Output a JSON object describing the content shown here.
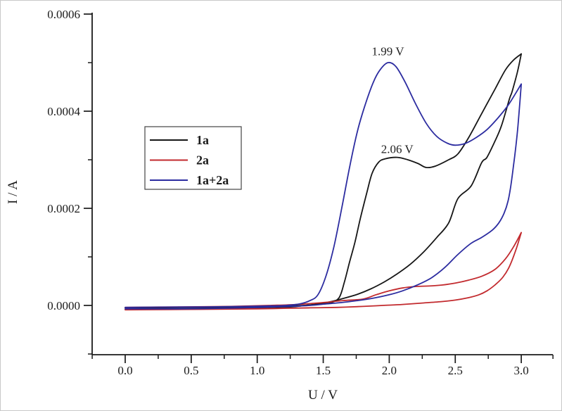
{
  "figure": {
    "background": "#ffffff",
    "axis_color": "#1a1a1a"
  },
  "axes": {
    "x_title": "U / V",
    "y_title": "I / A"
  },
  "legend": {
    "entries": [
      {
        "label": "1a",
        "color": "#161616"
      },
      {
        "label": "2a",
        "color": "#c22a2e"
      },
      {
        "label": "1a+2a",
        "color": "#2c2ca0"
      }
    ]
  },
  "chart_data": {
    "type": "line",
    "chart_kind": "cyclic-voltammogram",
    "title": "",
    "xlabel": "U / V",
    "ylabel": "I / A",
    "xlim": [
      -0.25,
      3.25
    ],
    "ylim": [
      -0.0001,
      0.0006
    ],
    "grid": false,
    "legend_position": "upper-left-inside",
    "x_ticks": {
      "values": [
        0.0,
        0.5,
        1.0,
        1.5,
        2.0,
        2.5,
        3.0
      ],
      "labels": [
        "0.0",
        "0.5",
        "1.0",
        "1.5",
        "2.0",
        "2.5",
        "3.0"
      ],
      "minor": [
        -0.25,
        0.25,
        0.75,
        1.25,
        1.75,
        2.25,
        2.75,
        3.24
      ]
    },
    "y_ticks": {
      "values": [
        0.0,
        0.0002,
        0.0004,
        0.0006
      ],
      "labels": [
        "0.0000",
        "0.0002",
        "0.0004",
        "0.0006"
      ],
      "minor": [
        -0.0001,
        0.0001,
        0.0003,
        0.0005
      ]
    },
    "annotations": [
      {
        "text": "1.99 V",
        "x": 1.99,
        "y": 0.000515,
        "series": "1a+2a"
      },
      {
        "text": "2.06 V",
        "x": 2.06,
        "y": 0.000314,
        "series": "1a"
      }
    ],
    "series": [
      {
        "name": "1a",
        "color": "#161616",
        "peak": {
          "v": 2.06,
          "i": 0.000305
        },
        "forward": [
          [
            0.0,
            -5e-06
          ],
          [
            0.3,
            -4.5e-06
          ],
          [
            0.6,
            -4e-06
          ],
          [
            0.9,
            -3e-06
          ],
          [
            1.1,
            -2e-06
          ],
          [
            1.25,
            -1e-06
          ],
          [
            1.35,
            0
          ],
          [
            1.45,
            2e-06
          ],
          [
            1.55,
            5e-06
          ],
          [
            1.62,
            1.6e-05
          ],
          [
            1.66,
            4.8e-05
          ],
          [
            1.7,
            9e-05
          ],
          [
            1.74,
            0.00013
          ],
          [
            1.78,
            0.000178
          ],
          [
            1.83,
            0.000232
          ],
          [
            1.87,
            0.000272
          ],
          [
            1.92,
            0.000295
          ],
          [
            1.97,
            0.000302
          ],
          [
            2.06,
            0.000305
          ],
          [
            2.14,
            0.0003
          ],
          [
            2.22,
            0.000292
          ],
          [
            2.28,
            0.000284
          ],
          [
            2.35,
            0.000287
          ],
          [
            2.45,
            0.0003
          ],
          [
            2.52,
            0.000312
          ],
          [
            2.6,
            0.000345
          ],
          [
            2.7,
            0.000395
          ],
          [
            2.8,
            0.000445
          ],
          [
            2.88,
            0.000485
          ],
          [
            2.94,
            0.000505
          ],
          [
            3.0,
            0.000518
          ]
        ],
        "return": [
          [
            3.0,
            0.000518
          ],
          [
            2.97,
            0.00048
          ],
          [
            2.93,
            0.00044
          ],
          [
            2.91,
            0.000425
          ],
          [
            2.85,
            0.00037
          ],
          [
            2.8,
            0.000338
          ],
          [
            2.74,
            0.000305
          ],
          [
            2.7,
            0.000294
          ],
          [
            2.62,
            0.000246
          ],
          [
            2.52,
            0.00022
          ],
          [
            2.45,
            0.00017
          ],
          [
            2.36,
            0.00014
          ],
          [
            2.26,
            0.00011
          ],
          [
            2.16,
            8.5e-05
          ],
          [
            2.06,
            6.5e-05
          ],
          [
            1.96,
            4.8e-05
          ],
          [
            1.86,
            3.4e-05
          ],
          [
            1.76,
            2.3e-05
          ],
          [
            1.66,
            1.5e-05
          ],
          [
            1.56,
            8e-06
          ],
          [
            1.46,
            3e-06
          ],
          [
            1.36,
            0
          ],
          [
            1.25,
            -3e-06
          ],
          [
            1.0,
            -5e-06
          ],
          [
            0.7,
            -7e-06
          ],
          [
            0.4,
            -8e-06
          ],
          [
            0.0,
            -8e-06
          ]
        ]
      },
      {
        "name": "2a",
        "color": "#c22a2e",
        "peak": null,
        "forward": [
          [
            0.0,
            -4e-06
          ],
          [
            0.4,
            -3e-06
          ],
          [
            0.8,
            -2e-06
          ],
          [
            1.1,
            0
          ],
          [
            1.3,
            2e-06
          ],
          [
            1.5,
            6e-06
          ],
          [
            1.65,
            1e-05
          ],
          [
            1.8,
            1.3e-05
          ],
          [
            1.9,
            2.2e-05
          ],
          [
            2.0,
            3e-05
          ],
          [
            2.1,
            3.6e-05
          ],
          [
            2.2,
            3.9e-05
          ],
          [
            2.3,
            4e-05
          ],
          [
            2.4,
            4.2e-05
          ],
          [
            2.5,
            4.6e-05
          ],
          [
            2.6,
            5.2e-05
          ],
          [
            2.7,
            6e-05
          ],
          [
            2.8,
            7.4e-05
          ],
          [
            2.88,
            9.6e-05
          ],
          [
            2.94,
            0.00012
          ],
          [
            3.0,
            0.00015
          ]
        ],
        "return": [
          [
            3.0,
            0.00015
          ],
          [
            2.96,
            0.000115
          ],
          [
            2.91,
            8e-05
          ],
          [
            2.86,
            5.8e-05
          ],
          [
            2.8,
            4.2e-05
          ],
          [
            2.74,
            3e-05
          ],
          [
            2.68,
            2.2e-05
          ],
          [
            2.6,
            1.6e-05
          ],
          [
            2.5,
            1.1e-05
          ],
          [
            2.4,
            8e-06
          ],
          [
            2.25,
            5e-06
          ],
          [
            2.1,
            2e-06
          ],
          [
            1.95,
            0
          ],
          [
            1.8,
            -2e-06
          ],
          [
            1.6,
            -4e-06
          ],
          [
            1.4,
            -5e-06
          ],
          [
            1.2,
            -6e-06
          ],
          [
            1.0,
            -7e-06
          ],
          [
            0.6,
            -8e-06
          ],
          [
            0.0,
            -9e-06
          ]
        ]
      },
      {
        "name": "1a+2a",
        "color": "#2c2ca0",
        "peak": {
          "v": 1.99,
          "i": 0.0005
        },
        "forward": [
          [
            0.0,
            -4e-06
          ],
          [
            0.3,
            -3.5e-06
          ],
          [
            0.6,
            -3e-06
          ],
          [
            0.9,
            -2e-06
          ],
          [
            1.1,
            -1e-06
          ],
          [
            1.22,
            0
          ],
          [
            1.32,
            3e-06
          ],
          [
            1.4,
            1e-05
          ],
          [
            1.46,
            2.2e-05
          ],
          [
            1.52,
            6e-05
          ],
          [
            1.58,
            0.00012
          ],
          [
            1.64,
            0.0002
          ],
          [
            1.7,
            0.000285
          ],
          [
            1.76,
            0.00036
          ],
          [
            1.82,
            0.000415
          ],
          [
            1.88,
            0.00046
          ],
          [
            1.93,
            0.000485
          ],
          [
            1.99,
            0.0005
          ],
          [
            2.05,
            0.000492
          ],
          [
            2.12,
            0.00046
          ],
          [
            2.2,
            0.000415
          ],
          [
            2.28,
            0.000375
          ],
          [
            2.36,
            0.000348
          ],
          [
            2.44,
            0.000334
          ],
          [
            2.5,
            0.00033
          ],
          [
            2.58,
            0.000334
          ],
          [
            2.66,
            0.000346
          ],
          [
            2.74,
            0.000362
          ],
          [
            2.82,
            0.000385
          ],
          [
            2.9,
            0.000412
          ],
          [
            2.96,
            0.000438
          ],
          [
            3.0,
            0.000456
          ]
        ],
        "return": [
          [
            3.0,
            0.000456
          ],
          [
            2.99,
            0.00042
          ],
          [
            2.975,
            0.00037
          ],
          [
            2.96,
            0.00033
          ],
          [
            2.94,
            0.000285
          ],
          [
            2.92,
            0.000245
          ],
          [
            2.9,
            0.000215
          ],
          [
            2.87,
            0.00019
          ],
          [
            2.83,
            0.00017
          ],
          [
            2.78,
            0.000155
          ],
          [
            2.7,
            0.00014
          ],
          [
            2.62,
            0.000128
          ],
          [
            2.52,
            0.000105
          ],
          [
            2.42,
            7.8e-05
          ],
          [
            2.32,
            5.7e-05
          ],
          [
            2.22,
            4.3e-05
          ],
          [
            2.1,
            3e-05
          ],
          [
            2.0,
            2.2e-05
          ],
          [
            1.88,
            1.5e-05
          ],
          [
            1.76,
            1e-05
          ],
          [
            1.64,
            6e-06
          ],
          [
            1.52,
            3e-06
          ],
          [
            1.4,
            0
          ],
          [
            1.25,
            -2e-06
          ],
          [
            1.0,
            -4e-06
          ],
          [
            0.7,
            -6e-06
          ],
          [
            0.4,
            -7e-06
          ],
          [
            0.0,
            -7e-06
          ]
        ]
      }
    ]
  }
}
